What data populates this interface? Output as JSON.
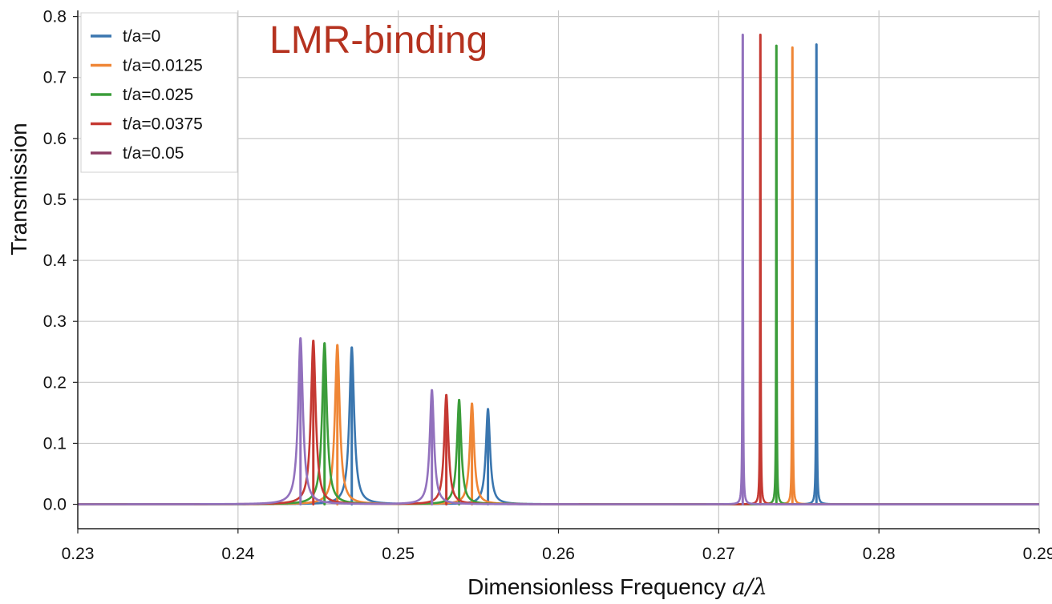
{
  "chart_data": {
    "type": "line",
    "title": "",
    "annotation": {
      "text": "LMR-binding",
      "color": "#b5321f"
    },
    "xlabel": "Dimensionless Frequency",
    "xlabel_math": "a/λ",
    "ylabel": "Transmission",
    "xlim": [
      0.23,
      0.29
    ],
    "ylim": [
      -0.04,
      0.81
    ],
    "x_ticks": [
      0.23,
      0.24,
      0.25,
      0.26,
      0.27,
      0.28,
      0.29
    ],
    "x_tick_labels": [
      "0.23",
      "0.24",
      "0.25",
      "0.26",
      "0.27",
      "0.28",
      "0.29"
    ],
    "y_ticks": [
      0.0,
      0.1,
      0.2,
      0.3,
      0.4,
      0.5,
      0.6,
      0.7,
      0.8
    ],
    "y_tick_labels": [
      "0.0",
      "0.1",
      "0.2",
      "0.3",
      "0.4",
      "0.5",
      "0.6",
      "0.7",
      "0.8"
    ],
    "grid": true,
    "legend_position": "top-left",
    "series": [
      {
        "name": "t/a=0",
        "color": "#3a76af",
        "peaks": [
          {
            "x": 0.2471,
            "y": 0.257,
            "width": 0.00018
          },
          {
            "x": 0.2556,
            "y": 0.156,
            "width": 0.00016
          },
          {
            "x": 0.2761,
            "y": 0.754,
            "width": 2e-05
          }
        ]
      },
      {
        "name": "t/a=0.0125",
        "color": "#ef8636",
        "peaks": [
          {
            "x": 0.2462,
            "y": 0.261,
            "width": 0.00018
          },
          {
            "x": 0.2546,
            "y": 0.165,
            "width": 0.00016
          },
          {
            "x": 0.2746,
            "y": 0.749,
            "width": 2e-05
          }
        ]
      },
      {
        "name": "t/a=0.025",
        "color": "#3b9d3a",
        "peaks": [
          {
            "x": 0.2454,
            "y": 0.264,
            "width": 0.00018
          },
          {
            "x": 0.2538,
            "y": 0.171,
            "width": 0.00016
          },
          {
            "x": 0.2736,
            "y": 0.752,
            "width": 2e-05
          }
        ]
      },
      {
        "name": "t/a=0.0375",
        "color": "#c53932",
        "peaks": [
          {
            "x": 0.2447,
            "y": 0.268,
            "width": 0.00018
          },
          {
            "x": 0.253,
            "y": 0.179,
            "width": 0.00016
          },
          {
            "x": 0.2726,
            "y": 0.77,
            "width": 2e-05
          }
        ]
      },
      {
        "name": "t/a=0.05",
        "color": "#9271bd",
        "legend_color": "#8b3a62",
        "peaks": [
          {
            "x": 0.2439,
            "y": 0.272,
            "width": 0.00018
          },
          {
            "x": 0.2521,
            "y": 0.187,
            "width": 0.00016
          },
          {
            "x": 0.2715,
            "y": 0.77,
            "width": 2e-05
          }
        ]
      }
    ]
  }
}
